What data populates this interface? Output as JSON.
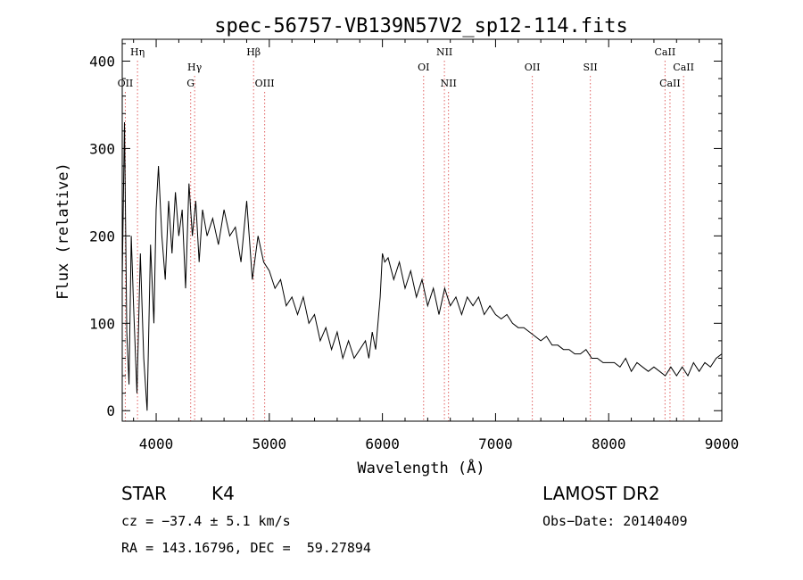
{
  "chart_data": {
    "type": "line",
    "title": "spec-56757-VB139N57V2_sp12-114.fits",
    "xlabel": "Wavelength (Å)",
    "ylabel": "Flux (relative)",
    "xlim": [
      3700,
      9000
    ],
    "ylim": [
      -12,
      425
    ],
    "xticks": [
      4000,
      5000,
      6000,
      7000,
      8000,
      9000
    ],
    "yticks": [
      0,
      100,
      200,
      300,
      400
    ],
    "grid": false,
    "legend": "none",
    "line_color": "#000000",
    "marker_color": "#e06060",
    "series": [
      {
        "x": [
          3700,
          3720,
          3740,
          3760,
          3780,
          3800,
          3830,
          3860,
          3890,
          3920,
          3950,
          3980,
          4000,
          4020,
          4050,
          4080,
          4110,
          4140,
          4170,
          4200,
          4230,
          4260,
          4290,
          4320,
          4350,
          4380,
          4410,
          4450,
          4500,
          4550,
          4600,
          4650,
          4700,
          4750,
          4800,
          4850,
          4900,
          4950,
          5000,
          5050,
          5100,
          5150,
          5200,
          5250,
          5300,
          5350,
          5400,
          5450,
          5500,
          5550,
          5600,
          5650,
          5700,
          5750,
          5800,
          5850,
          5880,
          5910,
          5940,
          5960,
          5980,
          6000,
          6020,
          6050,
          6100,
          6150,
          6200,
          6250,
          6300,
          6350,
          6400,
          6450,
          6500,
          6550,
          6600,
          6650,
          6700,
          6750,
          6800,
          6850,
          6900,
          6950,
          7000,
          7050,
          7100,
          7150,
          7200,
          7250,
          7300,
          7350,
          7400,
          7450,
          7500,
          7550,
          7600,
          7650,
          7700,
          7750,
          7800,
          7850,
          7900,
          7950,
          8000,
          8050,
          8100,
          8150,
          8200,
          8250,
          8300,
          8350,
          8400,
          8450,
          8500,
          8550,
          8600,
          8650,
          8700,
          8750,
          8800,
          8850,
          8900,
          8950,
          9000
        ],
        "y": [
          150,
          330,
          90,
          30,
          200,
          120,
          20,
          180,
          60,
          0,
          190,
          100,
          230,
          280,
          200,
          150,
          240,
          180,
          250,
          200,
          230,
          140,
          260,
          200,
          240,
          170,
          230,
          200,
          220,
          190,
          230,
          200,
          210,
          170,
          240,
          150,
          200,
          170,
          160,
          140,
          150,
          120,
          130,
          110,
          130,
          100,
          110,
          80,
          95,
          70,
          90,
          60,
          80,
          60,
          70,
          80,
          60,
          90,
          70,
          100,
          130,
          180,
          170,
          175,
          150,
          170,
          140,
          160,
          130,
          150,
          120,
          140,
          110,
          140,
          120,
          130,
          110,
          130,
          120,
          130,
          110,
          120,
          110,
          105,
          110,
          100,
          95,
          95,
          90,
          85,
          80,
          85,
          75,
          75,
          70,
          70,
          65,
          65,
          70,
          60,
          60,
          55,
          55,
          55,
          50,
          60,
          45,
          55,
          50,
          45,
          50,
          45,
          40,
          50,
          40,
          50,
          40,
          55,
          45,
          55,
          50,
          60,
          65
        ]
      }
    ],
    "lines": [
      {
        "label": "OII",
        "x": 3727,
        "row": 3
      },
      {
        "label": "Hη",
        "x": 3835,
        "row": 1
      },
      {
        "label": "Hγ",
        "x": 4340,
        "row": 2
      },
      {
        "label": "G",
        "x": 4305,
        "row": 3
      },
      {
        "label": "Hβ",
        "x": 4861,
        "row": 1
      },
      {
        "label": "OIII",
        "x": 4959,
        "row": 3
      },
      {
        "label": "OI",
        "x": 6364,
        "row": 2
      },
      {
        "label": "NII",
        "x": 6548,
        "row": 1
      },
      {
        "label": "NII",
        "x": 6584,
        "row": 3
      },
      {
        "label": "OII",
        "x": 7325,
        "row": 2
      },
      {
        "label": "SII",
        "x": 7838,
        "row": 2
      },
      {
        "label": "CaII",
        "x": 8498,
        "row": 1
      },
      {
        "label": "CaII",
        "x": 8542,
        "row": 3
      },
      {
        "label": "CaII",
        "x": 8662,
        "row": 2
      }
    ]
  },
  "info": {
    "object_class": "STAR",
    "subclass": "K4",
    "survey": "LAMOST DR2",
    "cz": "cz = −37.4 ± 5.1 km/s",
    "obs_date": "Obs−Date: 20140409",
    "coords": "RA = 143.16796, DEC =  59.27894"
  }
}
